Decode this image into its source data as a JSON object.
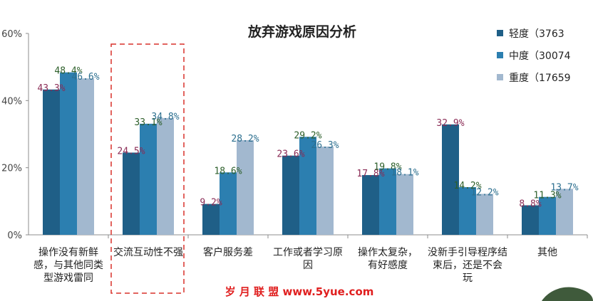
{
  "chart_data": {
    "type": "bar",
    "title": "放弃游戏原因分析",
    "categories": [
      [
        "操作没有新鲜",
        "感，与其他同类",
        "型游戏雷同"
      ],
      [
        "交流互动性不强"
      ],
      [
        "客户服务差"
      ],
      [
        "工作或者学习原",
        "因"
      ],
      [
        "操作太复杂，",
        "有好感度"
      ],
      [
        "没新手引导程序结",
        "束后，还是不会",
        "玩"
      ],
      [
        "其他"
      ]
    ],
    "series": [
      {
        "name": "轻度（3763",
        "color": "#1f5f87",
        "values": [
          43.3,
          24.5,
          9.2,
          23.6,
          17.8,
          32.9,
          8.8
        ],
        "labels": [
          "43.3%",
          "24.5%",
          "9.2%",
          "23.6%",
          "17.8%",
          "32.9%",
          "8.8%"
        ]
      },
      {
        "name": "中度（30074",
        "color": "#2c7fb0",
        "values": [
          48.4,
          33.1,
          18.6,
          29.2,
          19.8,
          14.2,
          11.3
        ],
        "labels": [
          "48.4%",
          "33.1%",
          "18.6%",
          "29.2%",
          "19.8%",
          "14.2%",
          "11.3%"
        ]
      },
      {
        "name": "重度（17659",
        "color": "#a2b8cf",
        "values": [
          46.6,
          34.8,
          28.2,
          26.3,
          18.1,
          12.2,
          13.7
        ],
        "labels": [
          "46.6%",
          "34.8%",
          "28.2%",
          "26.3%",
          "18.1%",
          "12.2%",
          "13.7%"
        ]
      }
    ],
    "yticks": [
      "0%",
      "20%",
      "40%",
      "60%"
    ],
    "ylim": [
      0,
      60
    ],
    "legend_position": "top-right",
    "grid": false,
    "highlighted_category_index": 1
  },
  "watermark": "岁 月 联 盟  www.5yue.com"
}
